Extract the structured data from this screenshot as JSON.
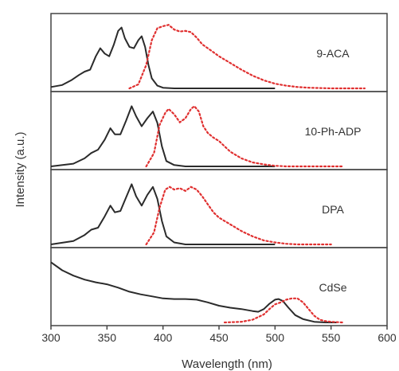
{
  "chart_data": {
    "type": "line",
    "xlabel": "Wavelength (nm)",
    "ylabel": "Intensity (a.u.)",
    "xlim": [
      300,
      600
    ],
    "x_ticks": [
      300,
      350,
      400,
      450,
      500,
      550,
      600
    ],
    "ylim": [
      0,
      1
    ],
    "grid": false,
    "series_styles": {
      "absorption": {
        "color": "#2b2b2b",
        "dash": "solid"
      },
      "emission": {
        "color": "#e03030",
        "dash": "dotted"
      }
    },
    "panels": [
      {
        "label": "9-ACA",
        "absorption": {
          "x": [
            300,
            310,
            318,
            325,
            330,
            335,
            340,
            344,
            348,
            352,
            356,
            360,
            363,
            366,
            370,
            374,
            378,
            381,
            384,
            387,
            390,
            395,
            400,
            410,
            420,
            440,
            470,
            500
          ],
          "y": [
            0.02,
            0.05,
            0.12,
            0.2,
            0.25,
            0.28,
            0.48,
            0.6,
            0.52,
            0.48,
            0.65,
            0.86,
            0.91,
            0.75,
            0.62,
            0.6,
            0.72,
            0.78,
            0.62,
            0.35,
            0.15,
            0.04,
            0.01,
            0.0,
            0.0,
            0.0,
            0.0,
            0.0
          ]
        },
        "emission": {
          "x": [
            370,
            378,
            385,
            390,
            395,
            400,
            405,
            410,
            415,
            420,
            425,
            430,
            435,
            440,
            445,
            450,
            460,
            470,
            480,
            490,
            500,
            510,
            520,
            530,
            540,
            550,
            560,
            570,
            580
          ],
          "y": [
            0.0,
            0.06,
            0.35,
            0.72,
            0.9,
            0.93,
            0.95,
            0.88,
            0.85,
            0.86,
            0.84,
            0.76,
            0.66,
            0.6,
            0.54,
            0.48,
            0.38,
            0.28,
            0.19,
            0.12,
            0.07,
            0.04,
            0.02,
            0.01,
            0.005,
            0.0,
            0.0,
            0.0,
            0.0
          ]
        }
      },
      {
        "label": "10-Ph-ADP",
        "absorption": {
          "x": [
            300,
            320,
            330,
            336,
            342,
            348,
            353,
            357,
            362,
            367,
            372,
            376,
            381,
            386,
            391,
            395,
            399,
            403,
            410,
            420,
            440,
            470,
            500
          ],
          "y": [
            0.0,
            0.04,
            0.12,
            0.2,
            0.25,
            0.4,
            0.57,
            0.48,
            0.48,
            0.68,
            0.9,
            0.75,
            0.6,
            0.72,
            0.82,
            0.65,
            0.3,
            0.08,
            0.02,
            0.0,
            0.0,
            0.0,
            0.0
          ]
        },
        "emission": {
          "x": [
            385,
            392,
            397,
            402,
            405,
            410,
            415,
            420,
            425,
            428,
            432,
            436,
            440,
            445,
            450,
            455,
            460,
            470,
            480,
            490,
            500,
            510,
            520,
            530,
            540,
            550,
            560
          ],
          "y": [
            0.0,
            0.2,
            0.62,
            0.8,
            0.86,
            0.78,
            0.66,
            0.72,
            0.86,
            0.9,
            0.82,
            0.6,
            0.5,
            0.43,
            0.38,
            0.3,
            0.22,
            0.12,
            0.06,
            0.03,
            0.01,
            0.0,
            0.0,
            0.0,
            0.0,
            0.0,
            0.0
          ]
        }
      },
      {
        "label": "DPA",
        "absorption": {
          "x": [
            300,
            320,
            330,
            336,
            342,
            348,
            353,
            357,
            362,
            367,
            372,
            376,
            381,
            386,
            391,
            395,
            399,
            403,
            410,
            420,
            440,
            470,
            500
          ],
          "y": [
            0.0,
            0.05,
            0.14,
            0.22,
            0.25,
            0.42,
            0.58,
            0.48,
            0.5,
            0.7,
            0.9,
            0.72,
            0.58,
            0.74,
            0.86,
            0.68,
            0.35,
            0.12,
            0.03,
            0.0,
            0.0,
            0.0,
            0.0
          ]
        },
        "emission": {
          "x": [
            385,
            392,
            397,
            402,
            406,
            410,
            415,
            420,
            425,
            430,
            435,
            440,
            445,
            450,
            460,
            470,
            480,
            490,
            500,
            510,
            520,
            530,
            540,
            550
          ],
          "y": [
            0.0,
            0.18,
            0.55,
            0.82,
            0.86,
            0.82,
            0.84,
            0.8,
            0.86,
            0.82,
            0.72,
            0.6,
            0.48,
            0.4,
            0.3,
            0.2,
            0.12,
            0.06,
            0.03,
            0.01,
            0.0,
            0.0,
            0.0,
            0.0
          ]
        }
      },
      {
        "label": "CdSe",
        "absorption": {
          "x": [
            300,
            310,
            320,
            330,
            340,
            350,
            360,
            370,
            380,
            390,
            400,
            410,
            420,
            430,
            440,
            450,
            460,
            470,
            480,
            485,
            490,
            495,
            500,
            503,
            507,
            512,
            518,
            525,
            535,
            545,
            555
          ],
          "y": [
            0.9,
            0.78,
            0.7,
            0.64,
            0.6,
            0.57,
            0.52,
            0.46,
            0.42,
            0.39,
            0.36,
            0.35,
            0.35,
            0.34,
            0.3,
            0.25,
            0.22,
            0.2,
            0.17,
            0.16,
            0.2,
            0.28,
            0.34,
            0.35,
            0.32,
            0.22,
            0.11,
            0.05,
            0.01,
            0.0,
            0.0
          ]
        },
        "emission": {
          "x": [
            455,
            470,
            480,
            490,
            495,
            500,
            505,
            510,
            515,
            520,
            525,
            530,
            535,
            540,
            545,
            550,
            560
          ],
          "y": [
            0.0,
            0.01,
            0.04,
            0.12,
            0.2,
            0.27,
            0.3,
            0.34,
            0.36,
            0.36,
            0.3,
            0.2,
            0.1,
            0.04,
            0.02,
            0.01,
            0.0
          ]
        }
      }
    ]
  }
}
